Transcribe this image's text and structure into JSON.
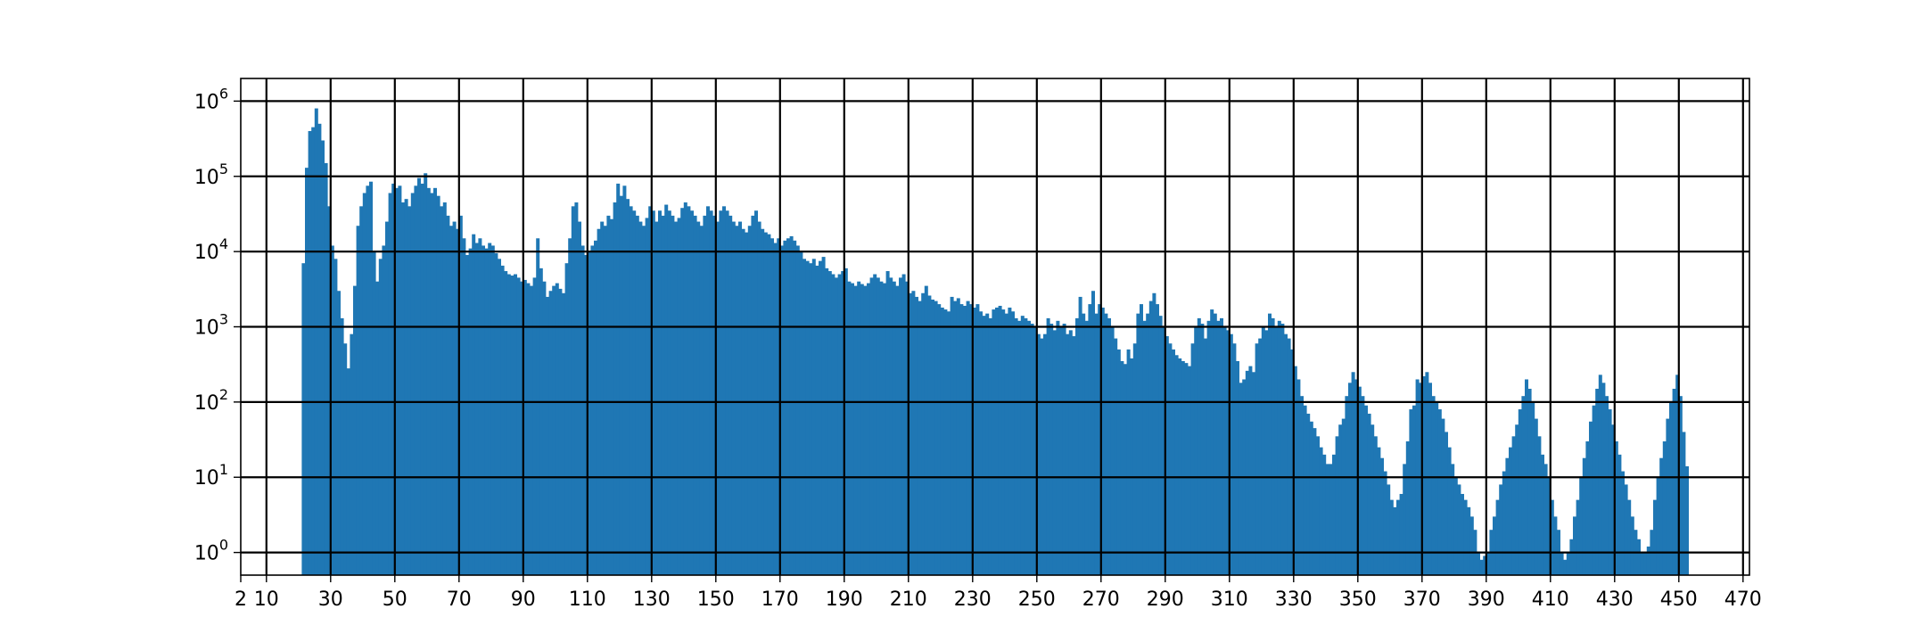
{
  "chart_data": {
    "type": "bar",
    "title": "",
    "xlabel": "",
    "ylabel": "",
    "yscale": "log",
    "xlim": [
      2,
      472
    ],
    "ylim": [
      0.5,
      2000000
    ],
    "grid": true,
    "bar_color": "#1f77b4",
    "grid_color": "#000000",
    "bin_width": 1,
    "x_ticks": [
      "2",
      "10",
      "30",
      "50",
      "70",
      "90",
      "110",
      "130",
      "150",
      "170",
      "190",
      "210",
      "230",
      "250",
      "270",
      "290",
      "310",
      "330",
      "350",
      "370",
      "390",
      "410",
      "430",
      "450",
      "470"
    ],
    "y_ticks": [
      {
        "base": "10",
        "exp": "0"
      },
      {
        "base": "10",
        "exp": "1"
      },
      {
        "base": "10",
        "exp": "2"
      },
      {
        "base": "10",
        "exp": "3"
      },
      {
        "base": "10",
        "exp": "4"
      },
      {
        "base": "10",
        "exp": "5"
      },
      {
        "base": "10",
        "exp": "6"
      }
    ],
    "bins": [
      [
        21,
        7000
      ],
      [
        22,
        130000
      ],
      [
        23,
        400000
      ],
      [
        24,
        450000
      ],
      [
        25,
        800000
      ],
      [
        26,
        500000
      ],
      [
        27,
        300000
      ],
      [
        28,
        150000
      ],
      [
        29,
        40000
      ],
      [
        30,
        12000
      ],
      [
        31,
        8000
      ],
      [
        32,
        3000
      ],
      [
        33,
        1300
      ],
      [
        34,
        600
      ],
      [
        35,
        280
      ],
      [
        36,
        800
      ],
      [
        37,
        3500
      ],
      [
        38,
        22000
      ],
      [
        39,
        40000
      ],
      [
        40,
        60000
      ],
      [
        41,
        75000
      ],
      [
        42,
        85000
      ],
      [
        43,
        10000
      ],
      [
        44,
        4000
      ],
      [
        45,
        8000
      ],
      [
        46,
        12000
      ],
      [
        47,
        25000
      ],
      [
        48,
        60000
      ],
      [
        49,
        80000
      ],
      [
        50,
        70000
      ],
      [
        51,
        75000
      ],
      [
        52,
        45000
      ],
      [
        53,
        50000
      ],
      [
        54,
        40000
      ],
      [
        55,
        60000
      ],
      [
        56,
        75000
      ],
      [
        57,
        95000
      ],
      [
        58,
        80000
      ],
      [
        59,
        110000
      ],
      [
        60,
        70000
      ],
      [
        61,
        60000
      ],
      [
        62,
        70000
      ],
      [
        63,
        55000
      ],
      [
        64,
        40000
      ],
      [
        65,
        45000
      ],
      [
        66,
        30000
      ],
      [
        67,
        22000
      ],
      [
        68,
        25000
      ],
      [
        69,
        20000
      ],
      [
        70,
        30000
      ],
      [
        71,
        15000
      ],
      [
        72,
        9000
      ],
      [
        73,
        11000
      ],
      [
        74,
        17000
      ],
      [
        75,
        13000
      ],
      [
        76,
        15000
      ],
      [
        77,
        12000
      ],
      [
        78,
        11000
      ],
      [
        79,
        13000
      ],
      [
        80,
        12000
      ],
      [
        81,
        9500
      ],
      [
        82,
        8000
      ],
      [
        83,
        6500
      ],
      [
        84,
        5500
      ],
      [
        85,
        5000
      ],
      [
        86,
        4800
      ],
      [
        87,
        5000
      ],
      [
        88,
        4500
      ],
      [
        89,
        4000
      ],
      [
        90,
        4200
      ],
      [
        91,
        3800
      ],
      [
        92,
        3500
      ],
      [
        93,
        4500
      ],
      [
        94,
        15000
      ],
      [
        95,
        6000
      ],
      [
        96,
        4000
      ],
      [
        97,
        2500
      ],
      [
        98,
        3000
      ],
      [
        99,
        3500
      ],
      [
        100,
        3800
      ],
      [
        101,
        3200
      ],
      [
        102,
        2800
      ],
      [
        103,
        7000
      ],
      [
        104,
        15000
      ],
      [
        105,
        40000
      ],
      [
        106,
        45000
      ],
      [
        107,
        25000
      ],
      [
        108,
        12000
      ],
      [
        109,
        9000
      ],
      [
        110,
        10000
      ],
      [
        111,
        12000
      ],
      [
        112,
        14000
      ],
      [
        113,
        20000
      ],
      [
        114,
        25000
      ],
      [
        115,
        22000
      ],
      [
        116,
        30000
      ],
      [
        117,
        27000
      ],
      [
        118,
        45000
      ],
      [
        119,
        80000
      ],
      [
        120,
        55000
      ],
      [
        121,
        75000
      ],
      [
        122,
        50000
      ],
      [
        123,
        40000
      ],
      [
        124,
        35000
      ],
      [
        125,
        30000
      ],
      [
        126,
        25000
      ],
      [
        127,
        22000
      ],
      [
        128,
        28000
      ],
      [
        129,
        40000
      ],
      [
        130,
        35000
      ],
      [
        131,
        25000
      ],
      [
        132,
        35000
      ],
      [
        133,
        30000
      ],
      [
        134,
        42000
      ],
      [
        135,
        35000
      ],
      [
        136,
        30000
      ],
      [
        137,
        25000
      ],
      [
        138,
        28000
      ],
      [
        139,
        38000
      ],
      [
        140,
        45000
      ],
      [
        141,
        40000
      ],
      [
        142,
        35000
      ],
      [
        143,
        30000
      ],
      [
        144,
        25000
      ],
      [
        145,
        22000
      ],
      [
        146,
        30000
      ],
      [
        147,
        40000
      ],
      [
        148,
        35000
      ],
      [
        149,
        30000
      ],
      [
        150,
        25000
      ],
      [
        151,
        35000
      ],
      [
        152,
        40000
      ],
      [
        153,
        35000
      ],
      [
        154,
        30000
      ],
      [
        155,
        25000
      ],
      [
        156,
        22000
      ],
      [
        157,
        25000
      ],
      [
        158,
        20000
      ],
      [
        159,
        18000
      ],
      [
        160,
        22000
      ],
      [
        161,
        30000
      ],
      [
        162,
        35000
      ],
      [
        163,
        25000
      ],
      [
        164,
        20000
      ],
      [
        165,
        18000
      ],
      [
        166,
        17000
      ],
      [
        167,
        15000
      ],
      [
        168,
        13000
      ],
      [
        169,
        15000
      ],
      [
        170,
        12000
      ],
      [
        171,
        14000
      ],
      [
        172,
        15000
      ],
      [
        173,
        16000
      ],
      [
        174,
        14000
      ],
      [
        175,
        12000
      ],
      [
        176,
        10000
      ],
      [
        177,
        8000
      ],
      [
        178,
        7500
      ],
      [
        179,
        7000
      ],
      [
        180,
        8000
      ],
      [
        181,
        6500
      ],
      [
        182,
        7500
      ],
      [
        183,
        8500
      ],
      [
        184,
        6000
      ],
      [
        185,
        5500
      ],
      [
        186,
        5000
      ],
      [
        187,
        4500
      ],
      [
        188,
        5000
      ],
      [
        189,
        5500
      ],
      [
        190,
        6000
      ],
      [
        191,
        4000
      ],
      [
        192,
        3800
      ],
      [
        193,
        3500
      ],
      [
        194,
        4000
      ],
      [
        195,
        3700
      ],
      [
        196,
        3500
      ],
      [
        197,
        3800
      ],
      [
        198,
        4500
      ],
      [
        199,
        5000
      ],
      [
        200,
        4500
      ],
      [
        201,
        4000
      ],
      [
        202,
        3800
      ],
      [
        203,
        5500
      ],
      [
        204,
        4500
      ],
      [
        205,
        4000
      ],
      [
        206,
        3500
      ],
      [
        207,
        4500
      ],
      [
        208,
        5000
      ],
      [
        209,
        4000
      ],
      [
        210,
        2800
      ],
      [
        211,
        3000
      ],
      [
        212,
        2500
      ],
      [
        213,
        2200
      ],
      [
        214,
        2800
      ],
      [
        215,
        3500
      ],
      [
        216,
        2600
      ],
      [
        217,
        2300
      ],
      [
        218,
        2200
      ],
      [
        219,
        2000
      ],
      [
        220,
        1800
      ],
      [
        221,
        1700
      ],
      [
        222,
        1600
      ],
      [
        223,
        2500
      ],
      [
        224,
        2200
      ],
      [
        225,
        2400
      ],
      [
        226,
        2000
      ],
      [
        227,
        1900
      ],
      [
        228,
        2200
      ],
      [
        229,
        2000
      ],
      [
        230,
        1800
      ],
      [
        231,
        2000
      ],
      [
        232,
        1600
      ],
      [
        233,
        1400
      ],
      [
        234,
        1500
      ],
      [
        235,
        1300
      ],
      [
        236,
        1700
      ],
      [
        237,
        1800
      ],
      [
        238,
        1900
      ],
      [
        239,
        1700
      ],
      [
        240,
        1500
      ],
      [
        241,
        1800
      ],
      [
        242,
        1600
      ],
      [
        243,
        1300
      ],
      [
        244,
        1200
      ],
      [
        245,
        1400
      ],
      [
        246,
        1300
      ],
      [
        247,
        1200
      ],
      [
        248,
        1100
      ],
      [
        249,
        1000
      ],
      [
        250,
        800
      ],
      [
        251,
        700
      ],
      [
        252,
        800
      ],
      [
        253,
        1300
      ],
      [
        254,
        1100
      ],
      [
        255,
        900
      ],
      [
        256,
        1200
      ],
      [
        257,
        1000
      ],
      [
        258,
        1100
      ],
      [
        259,
        800
      ],
      [
        260,
        900
      ],
      [
        261,
        750
      ],
      [
        262,
        1300
      ],
      [
        263,
        2500
      ],
      [
        264,
        1500
      ],
      [
        265,
        1200
      ],
      [
        266,
        2000
      ],
      [
        267,
        3000
      ],
      [
        268,
        1500
      ],
      [
        269,
        2000
      ],
      [
        270,
        1800
      ],
      [
        271,
        1500
      ],
      [
        272,
        1300
      ],
      [
        273,
        1000
      ],
      [
        274,
        700
      ],
      [
        275,
        500
      ],
      [
        276,
        350
      ],
      [
        277,
        320
      ],
      [
        278,
        500
      ],
      [
        279,
        380
      ],
      [
        280,
        600
      ],
      [
        281,
        1500
      ],
      [
        282,
        2000
      ],
      [
        283,
        1200
      ],
      [
        284,
        1500
      ],
      [
        285,
        2200
      ],
      [
        286,
        2800
      ],
      [
        287,
        2000
      ],
      [
        288,
        1400
      ],
      [
        289,
        1000
      ],
      [
        290,
        750
      ],
      [
        291,
        600
      ],
      [
        292,
        500
      ],
      [
        293,
        420
      ],
      [
        294,
        380
      ],
      [
        295,
        350
      ],
      [
        296,
        330
      ],
      [
        297,
        300
      ],
      [
        298,
        600
      ],
      [
        299,
        1000
      ],
      [
        300,
        1300
      ],
      [
        301,
        1100
      ],
      [
        302,
        700
      ],
      [
        303,
        1200
      ],
      [
        304,
        1700
      ],
      [
        305,
        1500
      ],
      [
        306,
        1200
      ],
      [
        307,
        1300
      ],
      [
        308,
        1000
      ],
      [
        309,
        900
      ],
      [
        310,
        800
      ],
      [
        311,
        600
      ],
      [
        312,
        350
      ],
      [
        313,
        180
      ],
      [
        314,
        200
      ],
      [
        315,
        260
      ],
      [
        316,
        300
      ],
      [
        317,
        250
      ],
      [
        318,
        600
      ],
      [
        319,
        700
      ],
      [
        320,
        1000
      ],
      [
        321,
        900
      ],
      [
        322,
        1500
      ],
      [
        323,
        1300
      ],
      [
        324,
        1000
      ],
      [
        325,
        1200
      ],
      [
        326,
        1100
      ],
      [
        327,
        800
      ],
      [
        328,
        700
      ],
      [
        329,
        500
      ],
      [
        330,
        300
      ],
      [
        331,
        200
      ],
      [
        332,
        120
      ],
      [
        333,
        90
      ],
      [
        334,
        70
      ],
      [
        335,
        55
      ],
      [
        336,
        45
      ],
      [
        337,
        35
      ],
      [
        338,
        25
      ],
      [
        339,
        20
      ],
      [
        340,
        15
      ],
      [
        341,
        15
      ],
      [
        342,
        20
      ],
      [
        343,
        35
      ],
      [
        344,
        50
      ],
      [
        345,
        60
      ],
      [
        346,
        120
      ],
      [
        347,
        180
      ],
      [
        348,
        250
      ],
      [
        349,
        200
      ],
      [
        350,
        160
      ],
      [
        351,
        120
      ],
      [
        352,
        90
      ],
      [
        353,
        70
      ],
      [
        354,
        50
      ],
      [
        355,
        35
      ],
      [
        356,
        25
      ],
      [
        357,
        18
      ],
      [
        358,
        12
      ],
      [
        359,
        8
      ],
      [
        360,
        5
      ],
      [
        361,
        4
      ],
      [
        362,
        5
      ],
      [
        363,
        6
      ],
      [
        364,
        15
      ],
      [
        365,
        30
      ],
      [
        366,
        80
      ],
      [
        367,
        90
      ],
      [
        368,
        200
      ],
      [
        369,
        180
      ],
      [
        370,
        220
      ],
      [
        371,
        250
      ],
      [
        372,
        180
      ],
      [
        373,
        120
      ],
      [
        374,
        100
      ],
      [
        375,
        80
      ],
      [
        376,
        60
      ],
      [
        377,
        40
      ],
      [
        378,
        25
      ],
      [
        379,
        15
      ],
      [
        380,
        10
      ],
      [
        381,
        8
      ],
      [
        382,
        6
      ],
      [
        383,
        5
      ],
      [
        384,
        4
      ],
      [
        385,
        3
      ],
      [
        386,
        2
      ],
      [
        387,
        1
      ],
      [
        388,
        0.8
      ],
      [
        389,
        0.9
      ],
      [
        390,
        1
      ],
      [
        391,
        2
      ],
      [
        392,
        3
      ],
      [
        393,
        5
      ],
      [
        394,
        8
      ],
      [
        395,
        12
      ],
      [
        396,
        18
      ],
      [
        397,
        25
      ],
      [
        398,
        35
      ],
      [
        399,
        50
      ],
      [
        400,
        80
      ],
      [
        401,
        120
      ],
      [
        402,
        200
      ],
      [
        403,
        150
      ],
      [
        404,
        100
      ],
      [
        405,
        60
      ],
      [
        406,
        35
      ],
      [
        407,
        20
      ],
      [
        408,
        15
      ],
      [
        409,
        10
      ],
      [
        410,
        5
      ],
      [
        411,
        3
      ],
      [
        412,
        2
      ],
      [
        413,
        1
      ],
      [
        414,
        0.8
      ],
      [
        415,
        1
      ],
      [
        416,
        1.5
      ],
      [
        417,
        3
      ],
      [
        418,
        5
      ],
      [
        419,
        10
      ],
      [
        420,
        18
      ],
      [
        421,
        30
      ],
      [
        422,
        55
      ],
      [
        423,
        90
      ],
      [
        424,
        150
      ],
      [
        425,
        230
      ],
      [
        426,
        180
      ],
      [
        427,
        120
      ],
      [
        428,
        80
      ],
      [
        429,
        50
      ],
      [
        430,
        30
      ],
      [
        431,
        20
      ],
      [
        432,
        12
      ],
      [
        433,
        8
      ],
      [
        434,
        5
      ],
      [
        435,
        3
      ],
      [
        436,
        2
      ],
      [
        437,
        1.5
      ],
      [
        438,
        1
      ],
      [
        439,
        1
      ],
      [
        440,
        1.2
      ],
      [
        441,
        2
      ],
      [
        442,
        5
      ],
      [
        443,
        10
      ],
      [
        444,
        18
      ],
      [
        445,
        30
      ],
      [
        446,
        60
      ],
      [
        447,
        100
      ],
      [
        448,
        150
      ],
      [
        449,
        230
      ],
      [
        450,
        120
      ],
      [
        451,
        40
      ],
      [
        452,
        14
      ]
    ]
  }
}
